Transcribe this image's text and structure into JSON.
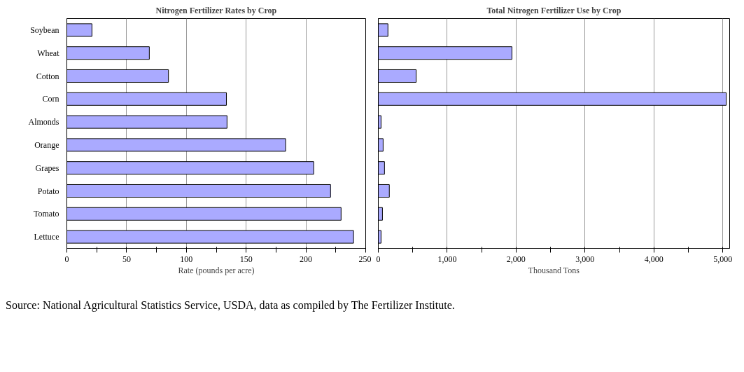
{
  "chart_data": [
    {
      "type": "bar",
      "orientation": "horizontal",
      "title": "Nitrogen Fertilizer Rates by Crop",
      "xlabel": "Rate (pounds per acre)",
      "categories": [
        "Soybean",
        "Wheat",
        "Cotton",
        "Corn",
        "Almonds",
        "Orange",
        "Grapes",
        "Potato",
        "Tomato",
        "Lettuce"
      ],
      "values": [
        21,
        69,
        85,
        133.5,
        134,
        183,
        206.5,
        220.6,
        229.4,
        239.8
      ],
      "color": "#aaaaff",
      "xlim": [
        0,
        250
      ],
      "xticks": [
        0,
        {
          "value": 25,
          "label": null
        },
        50,
        {
          "value": 75,
          "label": null
        },
        100,
        {
          "value": 125,
          "label": null
        },
        150,
        {
          "value": 175,
          "label": null
        },
        200,
        {
          "value": 225,
          "label": null
        },
        250
      ],
      "grid": "x",
      "annotations": [
        "Source:  National Agricultural Statistics Service, USDA, data as compiled by The Fertilizer Institute."
      ]
    },
    {
      "type": "bar",
      "orientation": "horizontal",
      "title": "Total Nitrogen Fertilizer Use by Crop",
      "xlabel": "Thousand Tons",
      "categories": [
        null,
        null,
        null,
        null,
        null,
        null,
        null,
        null,
        null,
        null
      ],
      "values": [
        140,
        1940,
        550,
        5050,
        40,
        70,
        90,
        160,
        60,
        40
      ],
      "color": "#aaaaff",
      "xlim": [
        0,
        5100
      ],
      "xticks": [
        {
          "value": 0,
          "label": "0"
        },
        {
          "value": 500,
          "label": null
        },
        {
          "value": 1000,
          "label": "1,000"
        },
        {
          "value": 1500,
          "label": null
        },
        {
          "value": 2000,
          "label": "2,000"
        },
        {
          "value": 2500,
          "label": null
        },
        {
          "value": 3000,
          "label": "3,000"
        },
        {
          "value": 3500,
          "label": null
        },
        {
          "value": 4000,
          "label": "4,000"
        },
        {
          "value": 4500,
          "label": null
        },
        {
          "value": 5000,
          "label": "5,000"
        }
      ],
      "grid": "x",
      "tick_labels": "x"
    }
  ]
}
